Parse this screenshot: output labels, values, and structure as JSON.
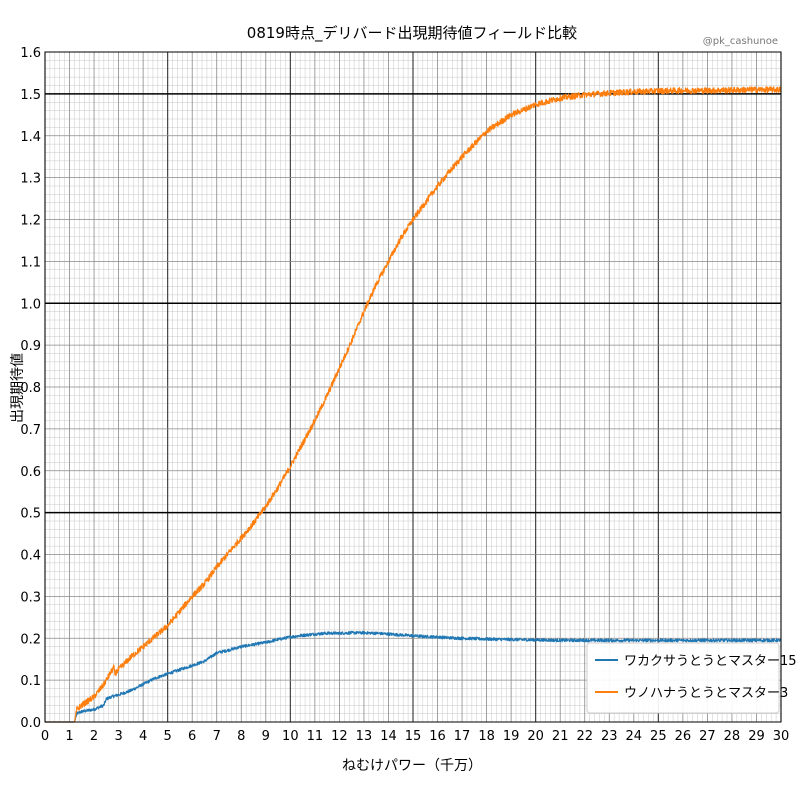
{
  "chart_data": {
    "type": "line",
    "title": "0819時点_デリバード出現期待値フィールド比較",
    "watermark": "@pk_cashunoe",
    "xlabel": "ねむけパワー（千万）",
    "ylabel": "出現期待値",
    "xlim": [
      0,
      30
    ],
    "ylim": [
      0,
      1.6
    ],
    "x_ticks": [
      0,
      1,
      2,
      3,
      4,
      5,
      6,
      7,
      8,
      9,
      10,
      11,
      12,
      13,
      14,
      15,
      16,
      17,
      18,
      19,
      20,
      21,
      22,
      23,
      24,
      25,
      26,
      27,
      28,
      29,
      30
    ],
    "y_ticks": [
      "0.0",
      "0.1",
      "0.2",
      "0.3",
      "0.4",
      "0.5",
      "0.6",
      "0.7",
      "0.8",
      "0.9",
      "1.0",
      "1.1",
      "1.2",
      "1.3",
      "1.4",
      "1.5",
      "1.6"
    ],
    "grid": true,
    "emphasized_y_lines": [
      0.5,
      1.0,
      1.5
    ],
    "legend_position": "lower-right",
    "series": [
      {
        "name": "ワカクサうとうとマスター15",
        "color": "#1f77b4",
        "points": [
          [
            0,
            0
          ],
          [
            1.2,
            0
          ],
          [
            1.3,
            0.02
          ],
          [
            1.5,
            0.025
          ],
          [
            2.0,
            0.03
          ],
          [
            2.4,
            0.04
          ],
          [
            2.5,
            0.055
          ],
          [
            2.7,
            0.06
          ],
          [
            3.0,
            0.065
          ],
          [
            3.5,
            0.075
          ],
          [
            4.0,
            0.09
          ],
          [
            4.5,
            0.105
          ],
          [
            5.0,
            0.115
          ],
          [
            5.5,
            0.125
          ],
          [
            6.0,
            0.135
          ],
          [
            6.5,
            0.145
          ],
          [
            7.0,
            0.165
          ],
          [
            7.5,
            0.172
          ],
          [
            8.0,
            0.18
          ],
          [
            8.5,
            0.185
          ],
          [
            9.0,
            0.19
          ],
          [
            9.5,
            0.197
          ],
          [
            10.0,
            0.203
          ],
          [
            10.5,
            0.207
          ],
          [
            11.0,
            0.21
          ],
          [
            11.5,
            0.212
          ],
          [
            12.0,
            0.212
          ],
          [
            12.5,
            0.213
          ],
          [
            13.0,
            0.213
          ],
          [
            13.5,
            0.212
          ],
          [
            14.0,
            0.21
          ],
          [
            14.5,
            0.208
          ],
          [
            15.0,
            0.206
          ],
          [
            15.5,
            0.204
          ],
          [
            16.0,
            0.203
          ],
          [
            16.5,
            0.201
          ],
          [
            17.0,
            0.2
          ],
          [
            17.5,
            0.199
          ],
          [
            18.0,
            0.198
          ],
          [
            19.0,
            0.197
          ],
          [
            20.0,
            0.196
          ],
          [
            21.0,
            0.195
          ],
          [
            22.0,
            0.195
          ],
          [
            23.0,
            0.195
          ],
          [
            24.0,
            0.195
          ],
          [
            25.0,
            0.195
          ],
          [
            26.0,
            0.195
          ],
          [
            27.0,
            0.195
          ],
          [
            28.0,
            0.195
          ],
          [
            29.0,
            0.195
          ],
          [
            30.0,
            0.195
          ]
        ]
      },
      {
        "name": "ウノハナうとうとマスター3",
        "color": "#ff7f0e",
        "points": [
          [
            0,
            0
          ],
          [
            1.2,
            0
          ],
          [
            1.3,
            0.03
          ],
          [
            1.5,
            0.04
          ],
          [
            2.0,
            0.06
          ],
          [
            2.4,
            0.09
          ],
          [
            2.5,
            0.1
          ],
          [
            2.8,
            0.13
          ],
          [
            2.85,
            0.115
          ],
          [
            3.0,
            0.125
          ],
          [
            3.5,
            0.155
          ],
          [
            4.0,
            0.18
          ],
          [
            4.5,
            0.205
          ],
          [
            5.0,
            0.23
          ],
          [
            5.5,
            0.265
          ],
          [
            6.0,
            0.3
          ],
          [
            6.5,
            0.33
          ],
          [
            7.0,
            0.37
          ],
          [
            7.5,
            0.405
          ],
          [
            8.0,
            0.44
          ],
          [
            8.5,
            0.475
          ],
          [
            9.0,
            0.515
          ],
          [
            9.5,
            0.56
          ],
          [
            10.0,
            0.61
          ],
          [
            10.5,
            0.665
          ],
          [
            11.0,
            0.72
          ],
          [
            11.5,
            0.78
          ],
          [
            12.0,
            0.845
          ],
          [
            12.5,
            0.91
          ],
          [
            13.0,
            0.98
          ],
          [
            13.5,
            1.045
          ],
          [
            14.0,
            1.1
          ],
          [
            14.5,
            1.155
          ],
          [
            15.0,
            1.2
          ],
          [
            15.5,
            1.24
          ],
          [
            16.0,
            1.28
          ],
          [
            16.5,
            1.315
          ],
          [
            17.0,
            1.35
          ],
          [
            17.5,
            1.38
          ],
          [
            18.0,
            1.41
          ],
          [
            18.5,
            1.43
          ],
          [
            19.0,
            1.45
          ],
          [
            19.5,
            1.462
          ],
          [
            20.0,
            1.475
          ],
          [
            20.5,
            1.482
          ],
          [
            21.0,
            1.49
          ],
          [
            22.0,
            1.498
          ],
          [
            23.0,
            1.502
          ],
          [
            24.0,
            1.505
          ],
          [
            25.0,
            1.507
          ],
          [
            26.0,
            1.508
          ],
          [
            27.0,
            1.508
          ],
          [
            28.0,
            1.509
          ],
          [
            29.0,
            1.51
          ],
          [
            30.0,
            1.51
          ]
        ]
      }
    ]
  }
}
